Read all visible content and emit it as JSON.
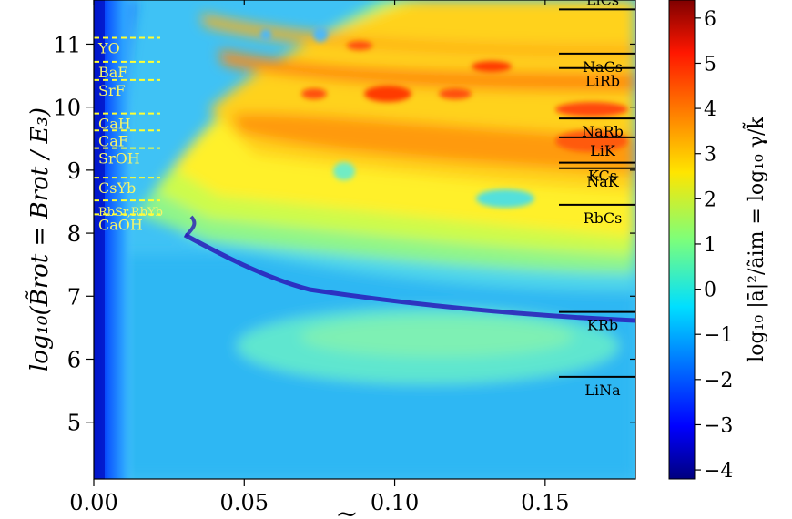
{
  "chart_data": {
    "type": "heatmap",
    "xlabel": "~",
    "ylabel": "log₁₀(B̃rot = Brot / E₃)",
    "xlim": [
      0.0,
      0.18
    ],
    "ylim": [
      4.1,
      11.7
    ],
    "xticks": [
      {
        "value": 0.0,
        "label": "0.00"
      },
      {
        "value": 0.05,
        "label": "0.05"
      },
      {
        "value": 0.1,
        "label": "0.10"
      },
      {
        "value": 0.15,
        "label": "0.15"
      }
    ],
    "yticks": [
      {
        "value": 5,
        "label": "5"
      },
      {
        "value": 6,
        "label": "6"
      },
      {
        "value": 7,
        "label": "7"
      },
      {
        "value": 8,
        "label": "8"
      },
      {
        "value": 9,
        "label": "9"
      },
      {
        "value": 10,
        "label": "10"
      },
      {
        "value": 11,
        "label": "11"
      }
    ],
    "colorbar": {
      "label": "log₁₀ |ā|²/ãim = log₁₀ γ/k̃",
      "min": -4.2,
      "max": 6.4,
      "ticks": [
        {
          "value": -4,
          "label": "−4"
        },
        {
          "value": -3,
          "label": "−3"
        },
        {
          "value": -2,
          "label": "−2"
        },
        {
          "value": -1,
          "label": "−1"
        },
        {
          "value": 0,
          "label": "0"
        },
        {
          "value": 1,
          "label": "1"
        },
        {
          "value": 2,
          "label": "2"
        },
        {
          "value": 3,
          "label": "3"
        },
        {
          "value": 4,
          "label": "4"
        },
        {
          "value": 5,
          "label": "5"
        },
        {
          "value": 6,
          "label": "6"
        }
      ]
    },
    "colormap": "jet",
    "bosonic_molecules": [
      {
        "name": "LiCs",
        "y": 11.55
      },
      {
        "name": "NaCs",
        "y": 10.85
      },
      {
        "name": "LiRb",
        "y": 10.62
      },
      {
        "name": "NaRb",
        "y": 9.82
      },
      {
        "name": "LiK",
        "y": 9.52
      },
      {
        "name": "KCs",
        "y": 9.12
      },
      {
        "name": "NaK",
        "y": 9.03
      },
      {
        "name": "RbCs",
        "y": 8.45
      },
      {
        "name": "KRb",
        "y": 6.75
      },
      {
        "name": "LiNa",
        "y": 5.72
      }
    ],
    "paramagnetic_molecules": [
      {
        "name": "YO",
        "y": 11.1
      },
      {
        "name": "BaF",
        "y": 10.72
      },
      {
        "name": "SrF",
        "y": 10.43
      },
      {
        "name": "CaH",
        "y": 9.9
      },
      {
        "name": "CaF",
        "y": 9.63
      },
      {
        "name": "SrOH",
        "y": 9.35
      },
      {
        "name": "CsYb",
        "y": 8.88
      },
      {
        "name": "RbSr,RbYb",
        "y": 8.52
      },
      {
        "name": "CaOH",
        "y": 8.3
      }
    ],
    "bright_spots": [
      {
        "x": 0.1,
        "y": 10.32
      },
      {
        "x": 0.077,
        "y": 10.33
      },
      {
        "x": 0.125,
        "y": 10.32
      }
    ]
  },
  "colors": {
    "axis": "#000000",
    "paramagnetic_line": "#ffff33",
    "paramagnetic_text": "#f5f56a",
    "bosonic_line": "#000000",
    "resonance": "#2a1bb8"
  }
}
